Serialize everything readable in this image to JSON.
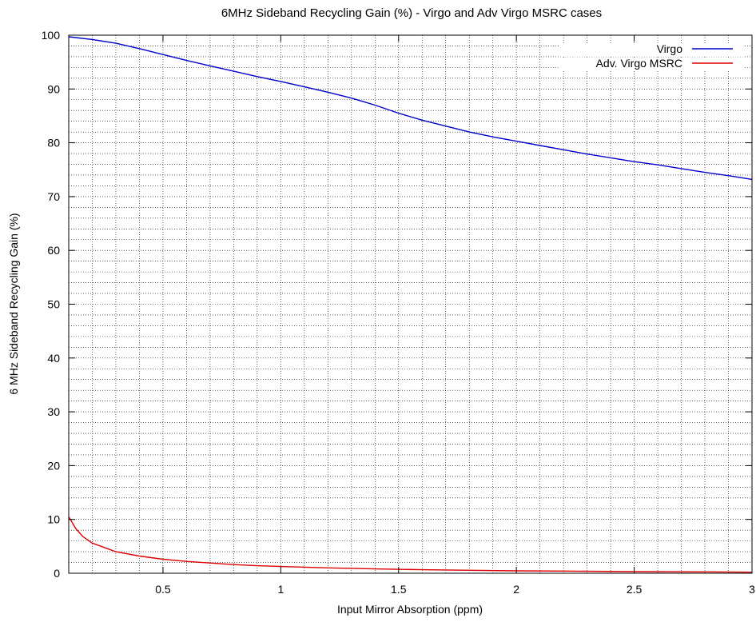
{
  "chart_data": {
    "type": "line",
    "title": "6MHz Sideband Recycling Gain (%) - Virgo and Adv Virgo MSRC cases",
    "xlabel": "Input Mirror Absorption (ppm)",
    "ylabel": "6 MHz Sideband Recycling Gain (%)",
    "xlim": [
      0.1,
      3
    ],
    "ylim": [
      0,
      100
    ],
    "grid": true,
    "legend_position": "top-right",
    "x_ticks": [
      0.5,
      1,
      1.5,
      2,
      2.5,
      3
    ],
    "x_tick_labels": [
      "0.5",
      "1",
      "1.5",
      "2",
      "2.5",
      "3"
    ],
    "x_minor_step": 0.1,
    "y_ticks": [
      0,
      10,
      20,
      30,
      40,
      50,
      60,
      70,
      80,
      90,
      100
    ],
    "y_tick_labels": [
      "0",
      "10",
      "20",
      "30",
      "40",
      "50",
      "60",
      "70",
      "80",
      "90",
      "100"
    ],
    "y_minor_step": 2,
    "series": [
      {
        "name": "Virgo",
        "color": "#0000cc",
        "x": [
          0.1,
          0.2,
          0.3,
          0.4,
          0.5,
          0.6,
          0.7,
          0.8,
          0.9,
          1.0,
          1.1,
          1.2,
          1.3,
          1.4,
          1.5,
          1.6,
          1.7,
          1.8,
          1.9,
          2.0,
          2.1,
          2.2,
          2.3,
          2.4,
          2.5,
          2.6,
          2.7,
          2.8,
          2.9,
          3.0
        ],
        "y": [
          99.7,
          99.2,
          98.5,
          97.5,
          96.4,
          95.3,
          94.3,
          93.3,
          92.3,
          91.4,
          90.4,
          89.4,
          88.3,
          87.0,
          85.5,
          84.2,
          83.1,
          82.0,
          81.1,
          80.3,
          79.5,
          78.7,
          77.9,
          77.2,
          76.5,
          75.9,
          75.2,
          74.5,
          73.9,
          73.2
        ]
      },
      {
        "name": "Adv. Virgo MSRC",
        "color": "#dd0000",
        "x": [
          0.1,
          0.13,
          0.16,
          0.2,
          0.25,
          0.3,
          0.4,
          0.5,
          0.6,
          0.7,
          0.8,
          0.9,
          1.0,
          1.2,
          1.4,
          1.6,
          1.8,
          2.0,
          2.2,
          2.5,
          2.8,
          3.0
        ],
        "y": [
          10.5,
          8.3,
          6.8,
          5.6,
          4.8,
          4.0,
          3.2,
          2.6,
          2.2,
          1.9,
          1.6,
          1.4,
          1.25,
          1.0,
          0.8,
          0.65,
          0.55,
          0.45,
          0.4,
          0.3,
          0.25,
          0.2
        ]
      }
    ]
  }
}
